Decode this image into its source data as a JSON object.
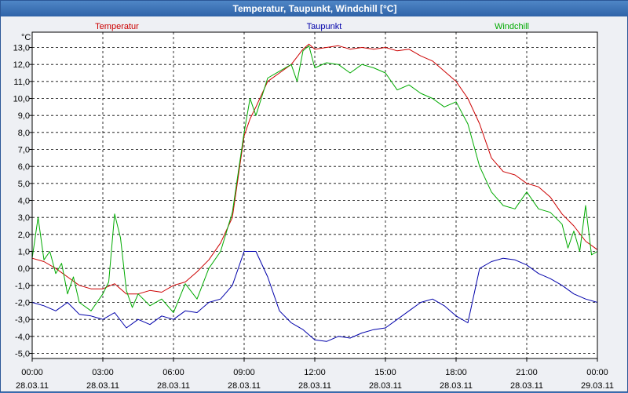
{
  "window": {
    "title": "Temperatur, Taupunkt, Windchill [°C]"
  },
  "chart_data": {
    "type": "line",
    "title": "Temperatur, Taupunkt, Windchill [°C]",
    "ylabel": "°C",
    "ylim": [
      -5.3,
      13.9
    ],
    "xlim": [
      0,
      24
    ],
    "grid": true,
    "yticks": [
      -5.0,
      -4.0,
      -3.0,
      -2.0,
      -1.0,
      0.0,
      1.0,
      2.0,
      3.0,
      4.0,
      5.0,
      6.0,
      7.0,
      8.0,
      9.0,
      10.0,
      11.0,
      12.0,
      13.0
    ],
    "ytick_labels": [
      "-5,0",
      "-4,0",
      "-3,0",
      "-2,0",
      "-1,0",
      "0,0",
      "1,0",
      "2,0",
      "3,0",
      "4,0",
      "5,0",
      "6,0",
      "7,0",
      "8,0",
      "9,0",
      "10,0",
      "11,0",
      "12,0",
      "13,0"
    ],
    "xticks": [
      {
        "x": 0,
        "time": "00:00",
        "date": "28.03.11"
      },
      {
        "x": 3,
        "time": "03:00",
        "date": "28.03.11"
      },
      {
        "x": 6,
        "time": "06:00",
        "date": "28.03.11"
      },
      {
        "x": 9,
        "time": "09:00",
        "date": "28.03.11"
      },
      {
        "x": 12,
        "time": "12:00",
        "date": "28.03.11"
      },
      {
        "x": 15,
        "time": "15:00",
        "date": "28.03.11"
      },
      {
        "x": 18,
        "time": "18:00",
        "date": "28.03.11"
      },
      {
        "x": 21,
        "time": "21:00",
        "date": "28.03.11"
      },
      {
        "x": 24,
        "time": "00:00",
        "date": "29.03.11"
      }
    ],
    "series": [
      {
        "name": "Temperatur",
        "color": "#cc0000",
        "legend_position": "top-left",
        "x": [
          0,
          0.5,
          1,
          1.5,
          2,
          2.5,
          3,
          3.5,
          4,
          4.5,
          5,
          5.5,
          6,
          6.5,
          7,
          7.5,
          8,
          8.5,
          9,
          9.25,
          9.5,
          10,
          10.5,
          11,
          11.5,
          11.75,
          12,
          12.5,
          13,
          13.5,
          14,
          14.5,
          15,
          15.5,
          16,
          16.5,
          17,
          17.5,
          18,
          18.5,
          19,
          19.5,
          20,
          20.5,
          21,
          21.5,
          22,
          22.5,
          23,
          23.5,
          24
        ],
        "y": [
          0.6,
          0.4,
          0.0,
          -0.5,
          -1.0,
          -1.2,
          -1.2,
          -0.9,
          -1.5,
          -1.5,
          -1.3,
          -1.4,
          -1.0,
          -0.8,
          -0.2,
          0.5,
          1.5,
          3.0,
          7.8,
          8.8,
          9.5,
          11.0,
          11.5,
          12.0,
          12.9,
          13.2,
          12.9,
          13.0,
          13.1,
          12.9,
          13.0,
          12.9,
          13.0,
          12.8,
          12.9,
          12.5,
          12.2,
          11.6,
          11.0,
          10.0,
          8.5,
          6.5,
          5.7,
          5.5,
          5.0,
          4.8,
          4.2,
          3.2,
          2.5,
          1.6,
          1.1
        ]
      },
      {
        "name": "Taupunkt",
        "color": "#0000aa",
        "legend_position": "top-center",
        "x": [
          0,
          0.5,
          1,
          1.5,
          2,
          2.5,
          3,
          3.5,
          4,
          4.5,
          5,
          5.5,
          6,
          6.5,
          7,
          7.5,
          8,
          8.5,
          9,
          9.5,
          10,
          10.5,
          11,
          11.5,
          12,
          12.5,
          13,
          13.5,
          14,
          14.5,
          15,
          15.5,
          16,
          16.5,
          17,
          17.5,
          18,
          18.5,
          19,
          19.5,
          20,
          20.5,
          21,
          21.5,
          22,
          22.5,
          23,
          23.5,
          24
        ],
        "y": [
          -2.0,
          -2.2,
          -2.5,
          -2.0,
          -2.7,
          -2.8,
          -3.0,
          -2.6,
          -3.5,
          -3.0,
          -3.3,
          -2.8,
          -3.0,
          -2.5,
          -2.6,
          -2.0,
          -1.8,
          -1.0,
          1.0,
          1.0,
          -0.5,
          -2.5,
          -3.2,
          -3.6,
          -4.2,
          -4.3,
          -4.0,
          -4.1,
          -3.8,
          -3.6,
          -3.5,
          -3.0,
          -2.5,
          -2.0,
          -1.8,
          -2.2,
          -2.8,
          -3.2,
          0.0,
          0.4,
          0.6,
          0.5,
          0.2,
          -0.3,
          -0.6,
          -1.0,
          -1.5,
          -1.8,
          -2.0
        ]
      },
      {
        "name": "Windchill",
        "color": "#00aa00",
        "legend_position": "top-right",
        "x": [
          0,
          0.25,
          0.5,
          0.75,
          1,
          1.25,
          1.5,
          1.75,
          2,
          2.5,
          3,
          3.25,
          3.5,
          3.75,
          4,
          4.25,
          4.5,
          5,
          5.5,
          6,
          6.5,
          7,
          7.5,
          8,
          8.5,
          9,
          9.25,
          9.5,
          10,
          10.5,
          11,
          11.25,
          11.5,
          11.75,
          12,
          12.5,
          13,
          13.5,
          14,
          14.5,
          15,
          15.5,
          16,
          16.5,
          17,
          17.5,
          18,
          18.5,
          19,
          19.5,
          20,
          20.5,
          21,
          21.5,
          22,
          22.5,
          22.75,
          23,
          23.25,
          23.5,
          23.75,
          24
        ],
        "y": [
          0.6,
          3.0,
          0.5,
          1.0,
          -0.3,
          0.3,
          -1.5,
          -0.5,
          -2.0,
          -2.5,
          -1.5,
          -0.8,
          3.2,
          1.8,
          -1.3,
          -2.3,
          -1.5,
          -2.2,
          -1.8,
          -2.6,
          -0.9,
          -1.8,
          0.0,
          1.0,
          3.3,
          8.0,
          10.0,
          9.0,
          11.2,
          11.6,
          12.0,
          11.0,
          12.8,
          13.1,
          11.8,
          12.1,
          12.0,
          11.5,
          12.0,
          11.8,
          11.5,
          10.5,
          10.8,
          10.3,
          10.0,
          9.5,
          9.8,
          8.5,
          6.0,
          4.5,
          3.7,
          3.5,
          4.5,
          3.5,
          3.3,
          2.6,
          1.2,
          2.2,
          1.0,
          3.7,
          0.8,
          1.0
        ]
      }
    ]
  }
}
